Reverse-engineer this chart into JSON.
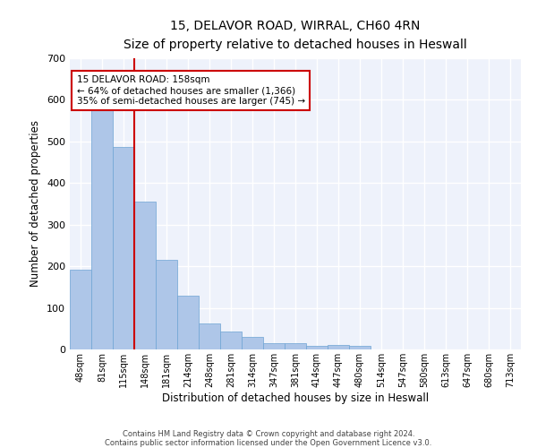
{
  "title1": "15, DELAVOR ROAD, WIRRAL, CH60 4RN",
  "title2": "Size of property relative to detached houses in Heswall",
  "xlabel": "Distribution of detached houses by size in Heswall",
  "ylabel": "Number of detached properties",
  "categories": [
    "48sqm",
    "81sqm",
    "115sqm",
    "148sqm",
    "181sqm",
    "214sqm",
    "248sqm",
    "281sqm",
    "314sqm",
    "347sqm",
    "381sqm",
    "414sqm",
    "447sqm",
    "480sqm",
    "514sqm",
    "547sqm",
    "580sqm",
    "613sqm",
    "647sqm",
    "680sqm",
    "713sqm"
  ],
  "values": [
    192,
    583,
    487,
    355,
    216,
    130,
    63,
    44,
    30,
    15,
    15,
    8,
    10,
    8,
    0,
    0,
    0,
    0,
    0,
    0,
    0
  ],
  "bar_color": "#aec6e8",
  "bar_edge_color": "#6da4d4",
  "vline_x": 2.5,
  "vline_color": "#cc0000",
  "annotation_text": "15 DELAVOR ROAD: 158sqm\n← 64% of detached houses are smaller (1,366)\n35% of semi-detached houses are larger (745) →",
  "annotation_box_color": "#ffffff",
  "annotation_box_edge_color": "#cc0000",
  "ylim": [
    0,
    700
  ],
  "yticks": [
    0,
    100,
    200,
    300,
    400,
    500,
    600,
    700
  ],
  "background_color": "#eef2fb",
  "grid_color": "#ffffff",
  "footer1": "Contains HM Land Registry data © Crown copyright and database right 2024.",
  "footer2": "Contains public sector information licensed under the Open Government Licence v3.0."
}
